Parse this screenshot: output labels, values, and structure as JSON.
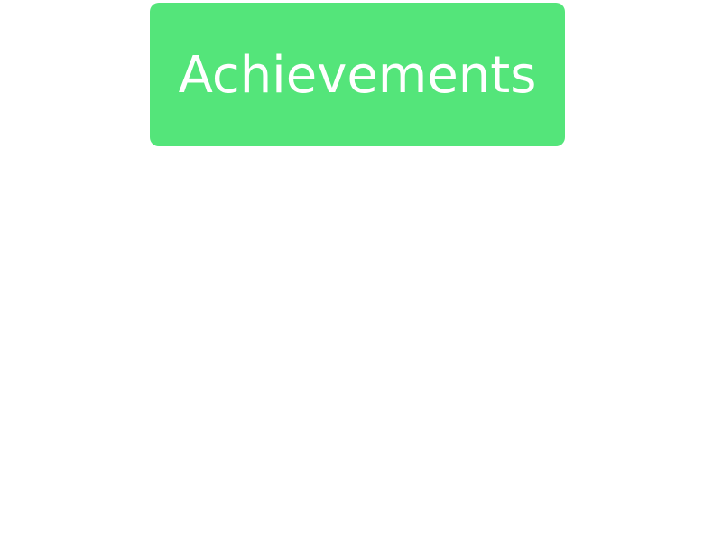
{
  "achievements_button": {
    "label": "Achievements"
  },
  "colors": {
    "button_background": "#54e57a",
    "button_text": "#ffffff",
    "page_background": "#ffffff"
  }
}
